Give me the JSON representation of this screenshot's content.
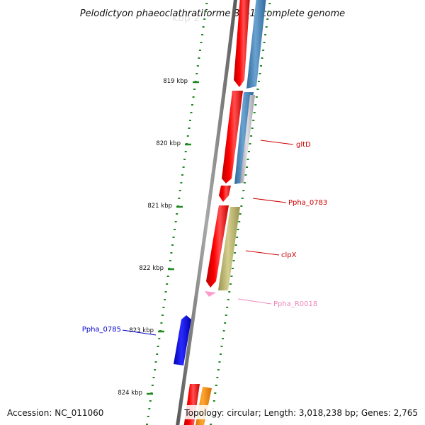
{
  "title": "Pelodictyon phaeoclathratiforme BU-1, complete genome",
  "footer": {
    "accession": "Accession: NC_011060",
    "topology": "Topology: circular; Length: 3,018,238 bp; Genes: 2,765"
  },
  "scale_ticks": [
    "819 kbp",
    "820 kbp",
    "821 kbp",
    "822 kbp",
    "823 kbp",
    "824 kbp"
  ],
  "gene_labels": [
    {
      "text": "gltD",
      "color": "#cc0000"
    },
    {
      "text": "Ppha_0783",
      "color": "#cc0000"
    },
    {
      "text": "clpX",
      "color": "#cc0000"
    },
    {
      "text": "Ppha_R0018",
      "color": "#ee88bb"
    },
    {
      "text": "Ppha_0785",
      "color": "#0000cc"
    }
  ],
  "colors": {
    "backbone": "#808080",
    "tick_marks": "#228822",
    "cds_forward": "#ff0000",
    "cds_blue": "#4682b4",
    "cds_grey": "#b0b0b8",
    "cds_olive": "#bdb76b",
    "rna": "#ff99cc",
    "cds_reverse": "#0000ff",
    "cds_orange": "#ff8c00"
  }
}
